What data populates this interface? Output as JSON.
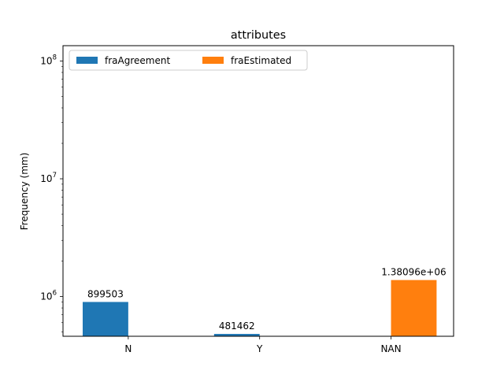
{
  "chart_data": {
    "type": "bar",
    "title": "attributes",
    "xlabel": "",
    "ylabel": "Frequency (mm)",
    "yscale": "log",
    "ylim": [
      460000,
      135000000
    ],
    "categories": [
      "N",
      "Y",
      "NAN"
    ],
    "series": [
      {
        "name": "fraAgreement",
        "color": "#1f77b4",
        "values": [
          899503,
          481462,
          null
        ],
        "labels": [
          "899503",
          "481462",
          ""
        ]
      },
      {
        "name": "fraEstimated",
        "color": "#ff7f0e",
        "values": [
          null,
          null,
          1380960
        ],
        "labels": [
          "",
          "",
          "1.38096e+06"
        ]
      }
    ],
    "yticks": [
      {
        "value": 1000000,
        "base": "10",
        "exp": "6"
      },
      {
        "value": 10000000,
        "base": "10",
        "exp": "7"
      },
      {
        "value": 100000000,
        "base": "10",
        "exp": "8"
      }
    ],
    "legend": {
      "placement": "upper-left",
      "columns": 2
    },
    "grid": false
  }
}
